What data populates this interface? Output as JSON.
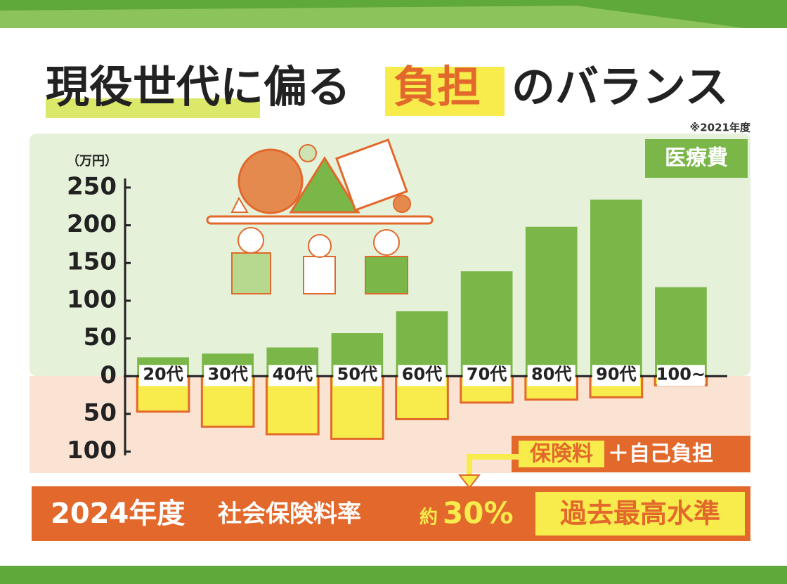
{
  "chart_data": {
    "type": "bar",
    "title_parts": [
      "現役世代に偏る",
      "負担",
      "のバランス"
    ],
    "note": "※2021年度",
    "y_unit": "（万円）",
    "categories": [
      "20代",
      "30代",
      "40代",
      "50代",
      "60代",
      "70代",
      "80代",
      "90代",
      "100~"
    ],
    "series": [
      {
        "name": "医療費",
        "color": "#7ab648",
        "values": [
          25,
          30,
          38,
          57,
          86,
          139,
          198,
          234,
          118
        ]
      },
      {
        "name": "保険料",
        "color": "#f7ec4c",
        "stroke": "#e2682b",
        "values": [
          -47,
          -67,
          -77,
          -83,
          -57,
          -35,
          -31,
          -28,
          -12
        ]
      }
    ],
    "legend_suffix": "＋自己負担",
    "ylim": [
      -105,
      262
    ],
    "yticks": [
      250,
      200,
      150,
      100,
      50,
      0,
      {
        "value": -50,
        "label": "50"
      },
      {
        "value": -100,
        "label": "100"
      }
    ],
    "banner": {
      "year": "2024年度",
      "label": "社会保険料率",
      "approx": "約",
      "rate": "30%",
      "highlight": "過去最高水準"
    }
  }
}
